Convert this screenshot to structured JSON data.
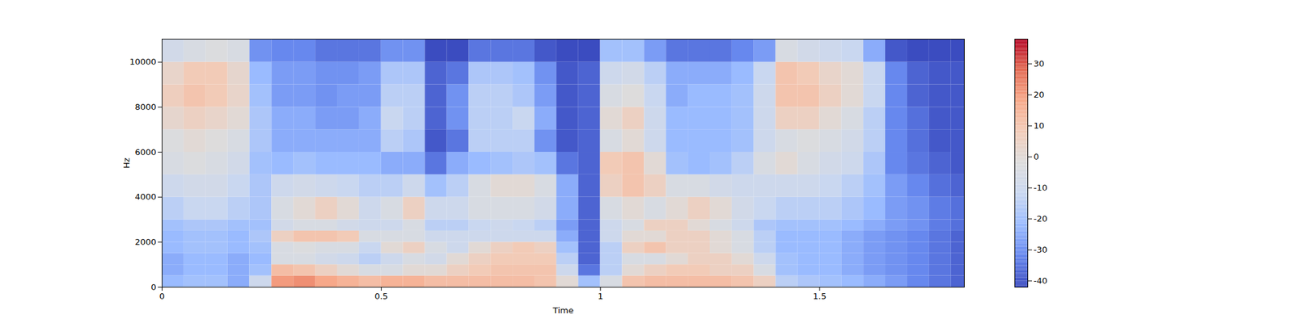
{
  "chart_data": {
    "type": "heatmap",
    "xlabel": "Time",
    "ylabel": "Hz",
    "xlim": [
      0,
      1.83
    ],
    "ylim": [
      0,
      11025
    ],
    "xticks": [
      0,
      0.5,
      1,
      1.5
    ],
    "yticks": [
      0,
      2000,
      4000,
      6000,
      8000,
      10000
    ],
    "x_edges": [
      0,
      0.05,
      0.1,
      0.15,
      0.2,
      0.25,
      0.3,
      0.35,
      0.4,
      0.45,
      0.5,
      0.55,
      0.6,
      0.65,
      0.7,
      0.75,
      0.8,
      0.85,
      0.9,
      0.95,
      1,
      1.05,
      1.1,
      1.15,
      1.2,
      1.25,
      1.3,
      1.35,
      1.4,
      1.45,
      1.5,
      1.55,
      1.6,
      1.65,
      1.7,
      1.75,
      1.8,
      1.85
    ],
    "y_edges": [
      0,
      500,
      1000,
      1500,
      2000,
      2500,
      3000,
      4000,
      5000,
      6000,
      7000,
      8000,
      9000,
      10000,
      11025
    ],
    "cells": [
      [
        -22,
        -25,
        -25,
        -22,
        -22,
        -20,
        -15,
        -10,
        -5,
        -3,
        2,
        6,
        3,
        -8
      ],
      [
        -20,
        -22,
        -22,
        -20,
        -20,
        -18,
        -12,
        -8,
        -3,
        0,
        5,
        10,
        8,
        -5
      ],
      [
        -20,
        -22,
        -22,
        -20,
        -20,
        -18,
        -12,
        -8,
        -5,
        -2,
        3,
        8,
        8,
        -3
      ],
      [
        -25,
        -25,
        -25,
        -22,
        -22,
        -20,
        -15,
        -12,
        -8,
        -5,
        0,
        3,
        2,
        -5
      ],
      [
        -10,
        -20,
        -22,
        -20,
        -18,
        -20,
        -18,
        -18,
        -20,
        -18,
        -18,
        -20,
        -22,
        -30
      ],
      [
        20,
        12,
        -5,
        -5,
        5,
        -8,
        -5,
        -10,
        -22,
        -25,
        -25,
        -28,
        -28,
        -32
      ],
      [
        22,
        10,
        -5,
        -3,
        10,
        -5,
        0,
        -8,
        -20,
        -25,
        -25,
        -28,
        -28,
        -32
      ],
      [
        18,
        5,
        -8,
        -5,
        10,
        -5,
        5,
        -10,
        -22,
        -25,
        -28,
        -30,
        -30,
        -35
      ],
      [
        15,
        0,
        -10,
        -5,
        8,
        -8,
        0,
        -12,
        -22,
        -25,
        -28,
        -28,
        -30,
        -35
      ],
      [
        12,
        -5,
        -15,
        -12,
        -5,
        -10,
        -10,
        -15,
        -22,
        -25,
        -25,
        -28,
        -28,
        -35
      ],
      [
        15,
        -5,
        -10,
        0,
        -5,
        -10,
        -5,
        -15,
        -25,
        -15,
        -12,
        -15,
        -18,
        -30
      ],
      [
        15,
        0,
        -5,
        5,
        -5,
        -5,
        5,
        -10,
        -25,
        -18,
        -15,
        -15,
        -18,
        -30
      ],
      [
        12,
        0,
        -8,
        -5,
        -10,
        -15,
        -10,
        -20,
        -35,
        -40,
        -38,
        -38,
        -38,
        -42
      ],
      [
        12,
        5,
        0,
        -10,
        -10,
        -15,
        -10,
        -15,
        -25,
        -35,
        -30,
        -30,
        -35,
        -42
      ],
      [
        12,
        8,
        5,
        0,
        -10,
        -12,
        -5,
        -5,
        -22,
        -15,
        -15,
        -15,
        -18,
        -35
      ],
      [
        12,
        10,
        8,
        5,
        -10,
        -10,
        -5,
        0,
        -20,
        -15,
        -15,
        -15,
        -18,
        -35
      ],
      [
        12,
        10,
        8,
        8,
        -10,
        -12,
        -5,
        0,
        -18,
        -15,
        -12,
        -18,
        -20,
        -35
      ],
      [
        10,
        10,
        8,
        5,
        -10,
        -15,
        -8,
        -5,
        -20,
        -30,
        -25,
        -28,
        -30,
        -40
      ],
      [
        0,
        -10,
        -15,
        -20,
        -25,
        -28,
        -25,
        -25,
        -35,
        -40,
        -40,
        -40,
        -40,
        -42
      ],
      [
        -20,
        -35,
        -38,
        -38,
        -38,
        -38,
        -38,
        -38,
        -38,
        -38,
        -38,
        -38,
        -38,
        -42
      ],
      [
        -5,
        -15,
        -15,
        -15,
        -10,
        -10,
        -5,
        5,
        8,
        -5,
        0,
        -5,
        -10,
        -20
      ],
      [
        10,
        0,
        -5,
        5,
        0,
        -5,
        0,
        10,
        10,
        0,
        5,
        -2,
        -8,
        -20
      ],
      [
        12,
        5,
        -5,
        10,
        0,
        5,
        -5,
        5,
        0,
        -10,
        -10,
        -12,
        -15,
        -28
      ],
      [
        12,
        8,
        0,
        5,
        5,
        5,
        0,
        -5,
        -20,
        -22,
        -22,
        -25,
        -25,
        -35
      ],
      [
        12,
        8,
        5,
        5,
        5,
        0,
        5,
        -5,
        -22,
        -22,
        -22,
        -22,
        -25,
        -35
      ],
      [
        12,
        5,
        5,
        0,
        0,
        -5,
        0,
        -8,
        -20,
        -22,
        -22,
        -22,
        -25,
        -35
      ],
      [
        10,
        5,
        0,
        -5,
        -5,
        -10,
        -8,
        -10,
        -15,
        -20,
        -20,
        -20,
        -22,
        -32
      ],
      [
        5,
        -5,
        -10,
        -15,
        -15,
        -18,
        -12,
        -10,
        -5,
        -10,
        -10,
        -10,
        -12,
        -28
      ],
      [
        -15,
        -20,
        -20,
        -22,
        -22,
        -20,
        -15,
        -10,
        0,
        -5,
        5,
        10,
        10,
        -5
      ],
      [
        -18,
        -22,
        -22,
        -22,
        -22,
        -20,
        -15,
        -10,
        -5,
        -3,
        5,
        10,
        8,
        -8
      ],
      [
        -20,
        -22,
        -22,
        -22,
        -22,
        -20,
        -15,
        -12,
        -8,
        -5,
        0,
        5,
        3,
        -10
      ],
      [
        -22,
        -25,
        -25,
        -25,
        -25,
        -22,
        -18,
        -15,
        -10,
        -8,
        -5,
        0,
        0,
        -12
      ],
      [
        -25,
        -28,
        -28,
        -28,
        -28,
        -25,
        -22,
        -20,
        -18,
        -15,
        -15,
        -12,
        -12,
        -25
      ],
      [
        -28,
        -30,
        -30,
        -30,
        -30,
        -28,
        -28,
        -28,
        -32,
        -32,
        -32,
        -32,
        -32,
        -40
      ],
      [
        -32,
        -32,
        -32,
        -32,
        -32,
        -30,
        -30,
        -32,
        -35,
        -36,
        -36,
        -38,
        -38,
        -42
      ],
      [
        -35,
        -35,
        -35,
        -35,
        -35,
        -34,
        -34,
        -36,
        -38,
        -40,
        -40,
        -40,
        -40,
        -42
      ],
      [
        -38,
        -38,
        -38,
        -38,
        -38,
        -36,
        -36,
        -38,
        -40,
        -40,
        -40,
        -40,
        -40,
        -42
      ]
    ],
    "colorbar": {
      "range": [
        -42,
        38
      ],
      "ticks": [
        -40,
        -30,
        -20,
        -10,
        0,
        10,
        20,
        30
      ]
    }
  }
}
